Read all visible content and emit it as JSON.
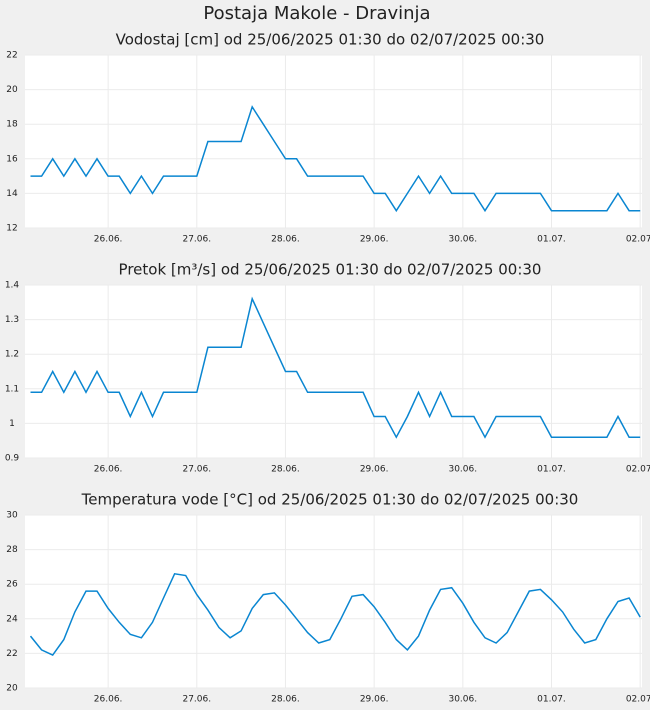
{
  "title": "Postaja Makole - Dravinja",
  "chart_data": [
    {
      "type": "line",
      "title": "Vodostaj [cm] od 25/06/2025 01:30 do 02/07/2025 00:30",
      "color": "#0a86d1",
      "grid": true,
      "x": [
        25.125,
        25.25,
        25.375,
        25.5,
        25.625,
        25.75,
        25.875,
        26.0,
        26.125,
        26.25,
        26.375,
        26.5,
        26.625,
        26.75,
        26.875,
        27.0,
        27.125,
        27.25,
        27.375,
        27.5,
        27.625,
        27.75,
        27.875,
        28.0,
        28.125,
        28.25,
        28.375,
        28.5,
        28.625,
        28.75,
        28.875,
        29.0,
        29.125,
        29.25,
        29.375,
        29.5,
        29.625,
        29.75,
        29.875,
        30.0,
        30.125,
        30.25,
        30.375,
        30.5,
        30.625,
        30.75,
        30.875,
        31.0,
        31.125,
        31.25,
        31.375,
        31.5,
        31.625,
        31.75,
        31.875,
        32.0
      ],
      "values": [
        15,
        15,
        16,
        15,
        16,
        15,
        16,
        15,
        15,
        14,
        15,
        14,
        15,
        15,
        15,
        15,
        17,
        17,
        17,
        17,
        19,
        18,
        17,
        16,
        16,
        15,
        15,
        15,
        15,
        15,
        15,
        14,
        14,
        13,
        14,
        15,
        14,
        15,
        14,
        14,
        14,
        13,
        14,
        14,
        14,
        14,
        14,
        13,
        13,
        13,
        13,
        13,
        13,
        14,
        13,
        13
      ],
      "xlim": [
        25.0625,
        32.0208
      ],
      "xticks": [
        {
          "value": 26,
          "label": "26.06."
        },
        {
          "value": 27,
          "label": "27.06."
        },
        {
          "value": 28,
          "label": "28.06."
        },
        {
          "value": 29,
          "label": "29.06."
        },
        {
          "value": 30,
          "label": "30.06."
        },
        {
          "value": 31,
          "label": "01.07."
        },
        {
          "value": 32,
          "label": "02.07."
        }
      ],
      "ylim": [
        12,
        22
      ],
      "yticks": [
        12,
        14,
        16,
        18,
        20,
        22
      ]
    },
    {
      "type": "line",
      "title": "Pretok [m³/s] od 25/06/2025 01:30 do 02/07/2025 00:30",
      "color": "#0a86d1",
      "grid": true,
      "x": [
        25.125,
        25.25,
        25.375,
        25.5,
        25.625,
        25.75,
        25.875,
        26.0,
        26.125,
        26.25,
        26.375,
        26.5,
        26.625,
        26.75,
        26.875,
        27.0,
        27.125,
        27.25,
        27.375,
        27.5,
        27.625,
        27.75,
        27.875,
        28.0,
        28.125,
        28.25,
        28.375,
        28.5,
        28.625,
        28.75,
        28.875,
        29.0,
        29.125,
        29.25,
        29.375,
        29.5,
        29.625,
        29.75,
        29.875,
        30.0,
        30.125,
        30.25,
        30.375,
        30.5,
        30.625,
        30.75,
        30.875,
        31.0,
        31.125,
        31.25,
        31.375,
        31.5,
        31.625,
        31.75,
        31.875,
        32.0
      ],
      "values": [
        1.09,
        1.09,
        1.15,
        1.09,
        1.15,
        1.09,
        1.15,
        1.09,
        1.09,
        1.02,
        1.09,
        1.02,
        1.09,
        1.09,
        1.09,
        1.09,
        1.22,
        1.22,
        1.22,
        1.22,
        1.36,
        1.29,
        1.22,
        1.15,
        1.15,
        1.09,
        1.09,
        1.09,
        1.09,
        1.09,
        1.09,
        1.02,
        1.02,
        0.96,
        1.02,
        1.09,
        1.02,
        1.09,
        1.02,
        1.02,
        1.02,
        0.96,
        1.02,
        1.02,
        1.02,
        1.02,
        1.02,
        0.96,
        0.96,
        0.96,
        0.96,
        0.96,
        0.96,
        1.02,
        0.96,
        0.96
      ],
      "xlim": [
        25.0625,
        32.0208
      ],
      "xticks": [
        {
          "value": 26,
          "label": "26.06."
        },
        {
          "value": 27,
          "label": "27.06."
        },
        {
          "value": 28,
          "label": "28.06."
        },
        {
          "value": 29,
          "label": "29.06."
        },
        {
          "value": 30,
          "label": "30.06."
        },
        {
          "value": 31,
          "label": "01.07."
        },
        {
          "value": 32,
          "label": "02.07."
        }
      ],
      "ylim": [
        0.9,
        1.4
      ],
      "yticks": [
        0.9,
        1,
        1.1,
        1.2,
        1.3,
        1.4
      ]
    },
    {
      "type": "line",
      "title": "Temperatura vode [°C] od 25/06/2025 01:30 do 02/07/2025 00:30",
      "color": "#0a86d1",
      "grid": true,
      "x": [
        25.125,
        25.25,
        25.375,
        25.5,
        25.625,
        25.75,
        25.875,
        26.0,
        26.125,
        26.25,
        26.375,
        26.5,
        26.625,
        26.75,
        26.875,
        27.0,
        27.125,
        27.25,
        27.375,
        27.5,
        27.625,
        27.75,
        27.875,
        28.0,
        28.125,
        28.25,
        28.375,
        28.5,
        28.625,
        28.75,
        28.875,
        29.0,
        29.125,
        29.25,
        29.375,
        29.5,
        29.625,
        29.75,
        29.875,
        30.0,
        30.125,
        30.25,
        30.375,
        30.5,
        30.625,
        30.75,
        30.875,
        31.0,
        31.125,
        31.25,
        31.375,
        31.5,
        31.625,
        31.75,
        31.875,
        32.0
      ],
      "values": [
        23.0,
        22.2,
        21.9,
        22.8,
        24.4,
        25.6,
        25.6,
        24.6,
        23.8,
        23.1,
        22.9,
        23.8,
        25.2,
        26.6,
        26.5,
        25.4,
        24.5,
        23.5,
        22.9,
        23.3,
        24.6,
        25.4,
        25.5,
        24.8,
        24.0,
        23.2,
        22.6,
        22.8,
        24.0,
        25.3,
        25.4,
        24.7,
        23.8,
        22.8,
        22.2,
        23.0,
        24.5,
        25.7,
        25.8,
        24.9,
        23.8,
        22.9,
        22.6,
        23.2,
        24.4,
        25.6,
        25.7,
        25.1,
        24.4,
        23.4,
        22.6,
        22.8,
        24.0,
        25.0,
        25.2,
        24.1
      ],
      "xlim": [
        25.0625,
        32.0208
      ],
      "xticks": [
        {
          "value": 26,
          "label": "26.06."
        },
        {
          "value": 27,
          "label": "27.06."
        },
        {
          "value": 28,
          "label": "28.06."
        },
        {
          "value": 29,
          "label": "29.06."
        },
        {
          "value": 30,
          "label": "30.06."
        },
        {
          "value": 31,
          "label": "01.07."
        },
        {
          "value": 32,
          "label": "02.07."
        }
      ],
      "ylim": [
        20,
        30
      ],
      "yticks": [
        20,
        22,
        24,
        26,
        28,
        30
      ]
    }
  ]
}
